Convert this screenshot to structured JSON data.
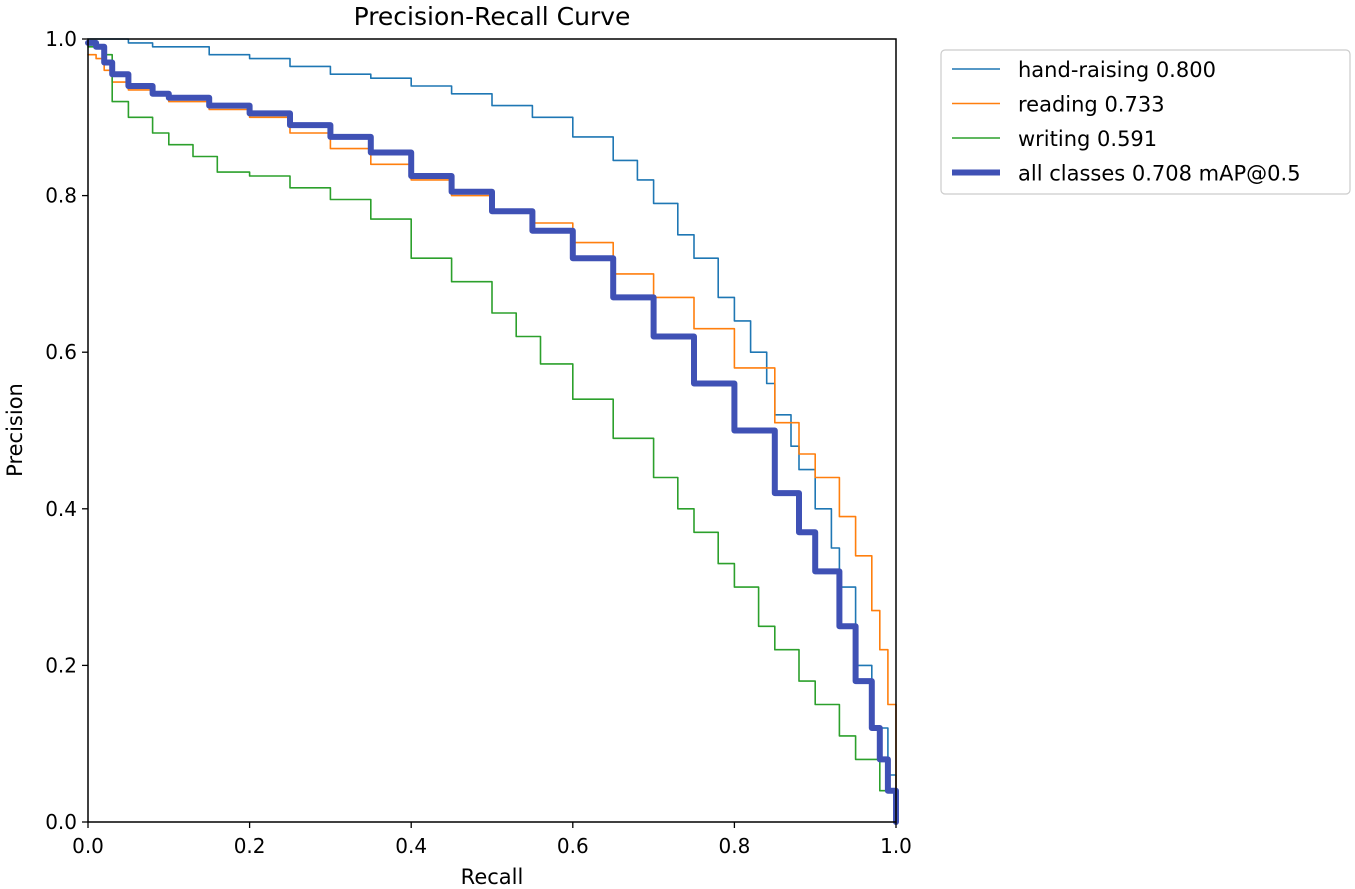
{
  "chart_data": {
    "type": "line",
    "title": "Precision-Recall Curve",
    "xlabel": "Recall",
    "ylabel": "Precision",
    "xlim": [
      0.0,
      1.0
    ],
    "ylim": [
      0.0,
      1.0
    ],
    "xticks": [
      "0.0",
      "0.2",
      "0.4",
      "0.6",
      "0.8",
      "1.0"
    ],
    "yticks": [
      "0.0",
      "0.2",
      "0.4",
      "0.6",
      "0.8",
      "1.0"
    ],
    "grid": false,
    "legend_position": "outside-top-right",
    "series": [
      {
        "name": "hand-raising 0.800",
        "color": "#1f77b4",
        "emphasis": false,
        "x": [
          0.0,
          0.02,
          0.05,
          0.08,
          0.1,
          0.15,
          0.2,
          0.25,
          0.3,
          0.35,
          0.4,
          0.45,
          0.5,
          0.55,
          0.6,
          0.65,
          0.68,
          0.7,
          0.73,
          0.75,
          0.78,
          0.8,
          0.82,
          0.84,
          0.85,
          0.87,
          0.88,
          0.9,
          0.92,
          0.93,
          0.95,
          0.97,
          0.99,
          1.0
        ],
        "y": [
          1.0,
          1.0,
          0.995,
          0.99,
          0.99,
          0.98,
          0.975,
          0.965,
          0.955,
          0.95,
          0.94,
          0.93,
          0.915,
          0.9,
          0.875,
          0.845,
          0.82,
          0.79,
          0.75,
          0.72,
          0.67,
          0.64,
          0.6,
          0.56,
          0.52,
          0.48,
          0.45,
          0.4,
          0.35,
          0.3,
          0.2,
          0.12,
          0.06,
          0.0
        ]
      },
      {
        "name": "reading 0.733",
        "color": "#ff7f0e",
        "emphasis": false,
        "x": [
          0.0,
          0.01,
          0.02,
          0.03,
          0.05,
          0.08,
          0.1,
          0.15,
          0.2,
          0.25,
          0.3,
          0.35,
          0.4,
          0.45,
          0.5,
          0.55,
          0.6,
          0.65,
          0.7,
          0.75,
          0.8,
          0.85,
          0.88,
          0.9,
          0.93,
          0.95,
          0.97,
          0.98,
          0.99,
          1.0
        ],
        "y": [
          0.98,
          0.975,
          0.96,
          0.945,
          0.935,
          0.93,
          0.92,
          0.91,
          0.9,
          0.88,
          0.86,
          0.84,
          0.82,
          0.8,
          0.78,
          0.765,
          0.74,
          0.7,
          0.67,
          0.63,
          0.58,
          0.51,
          0.47,
          0.44,
          0.39,
          0.34,
          0.27,
          0.22,
          0.15,
          0.0
        ]
      },
      {
        "name": "writing 0.591",
        "color": "#2ca02c",
        "emphasis": false,
        "x": [
          0.0,
          0.02,
          0.03,
          0.05,
          0.08,
          0.1,
          0.13,
          0.16,
          0.2,
          0.25,
          0.3,
          0.35,
          0.4,
          0.45,
          0.5,
          0.53,
          0.56,
          0.6,
          0.65,
          0.7,
          0.73,
          0.75,
          0.78,
          0.8,
          0.83,
          0.85,
          0.88,
          0.9,
          0.93,
          0.95,
          0.98,
          1.0
        ],
        "y": [
          0.99,
          0.98,
          0.92,
          0.9,
          0.88,
          0.865,
          0.85,
          0.83,
          0.825,
          0.81,
          0.795,
          0.77,
          0.72,
          0.69,
          0.65,
          0.62,
          0.585,
          0.54,
          0.49,
          0.44,
          0.4,
          0.37,
          0.33,
          0.3,
          0.25,
          0.22,
          0.18,
          0.15,
          0.11,
          0.08,
          0.04,
          0.0
        ]
      },
      {
        "name": "all classes 0.708 mAP@0.5",
        "color": "#3f51b5",
        "emphasis": true,
        "x": [
          0.0,
          0.01,
          0.02,
          0.03,
          0.05,
          0.08,
          0.1,
          0.15,
          0.2,
          0.25,
          0.3,
          0.35,
          0.4,
          0.45,
          0.5,
          0.55,
          0.6,
          0.65,
          0.7,
          0.75,
          0.8,
          0.85,
          0.88,
          0.9,
          0.93,
          0.95,
          0.97,
          0.98,
          0.99,
          1.0
        ],
        "y": [
          0.995,
          0.99,
          0.97,
          0.955,
          0.94,
          0.93,
          0.925,
          0.915,
          0.905,
          0.89,
          0.875,
          0.855,
          0.825,
          0.805,
          0.78,
          0.755,
          0.72,
          0.67,
          0.62,
          0.56,
          0.5,
          0.42,
          0.37,
          0.32,
          0.25,
          0.18,
          0.12,
          0.08,
          0.04,
          0.0
        ]
      }
    ]
  }
}
